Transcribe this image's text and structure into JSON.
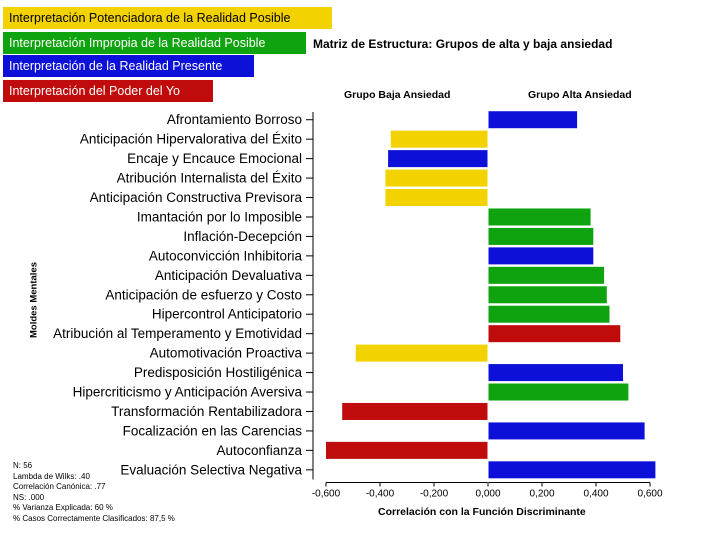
{
  "legend": [
    {
      "label": "Interpretación Potenciadora de la Realidad Posible",
      "color": "#f2d200"
    },
    {
      "label": "Interpretación Impropia de la Realidad Posible",
      "color": "#0fa30f"
    },
    {
      "label": "Interpretación de la Realidad Presente",
      "color": "#0d10d8"
    },
    {
      "label": "Interpretación del Poder del Yo",
      "color": "#bf0b0b"
    }
  ],
  "stats": {
    "n": "N: 56",
    "wilks": "Lambda de Wilks: .40",
    "canonical": "Correlación Canónica: .77",
    "ns": "NS: .000",
    "variance": "% Varianza Explicada: 60 %",
    "classified": "% Casos Correctamente Clasificados: 87,5 %"
  },
  "chart_data": {
    "type": "bar",
    "orientation": "horizontal",
    "title": "Matriz de Estructura: Grupos de alta y baja ansiedad",
    "group_low_label": "Grupo Baja Ansiedad",
    "group_high_label": "Grupo Alta Ansiedad",
    "xlabel": "Correlación con la Función Discriminante",
    "ylabel": "Moldes Mentales",
    "xlim": [
      -0.6,
      0.6
    ],
    "xticks": [
      "-0,600",
      "-0,400",
      "-0,200",
      "0,000",
      "0,200",
      "0,400",
      "0,600"
    ],
    "color_map": {
      "yellow": "#f2d200",
      "green": "#0fa30f",
      "blue": "#0d10d8",
      "red": "#bf0b0b"
    },
    "categories": [
      "Afrontamiento Borroso",
      "Anticipación Hipervalorativa del Éxito",
      "Encaje y Encauce Emocional",
      "Atribución Internalista del Éxito",
      "Anticipación Constructiva Previsora",
      "Imantación por lo Imposible",
      "Inflación-Decepción",
      "Autoconvicción Inhibitoria",
      "Anticipación Devaluativa",
      "Anticipación de esfuerzo y Costo",
      "Hipercontrol Anticipatorio",
      "Atribución al Temperamento y Emotividad",
      "Automotivación Proactiva",
      "Predisposición Hostiligénica",
      "Hipercriticismo y Anticipación Aversiva",
      "Transformación Rentabilizadora",
      "Focalización en las Carencias",
      "Autoconfianza",
      "Evaluación Selectiva Negativa"
    ],
    "values": [
      0.33,
      -0.36,
      -0.37,
      -0.38,
      -0.38,
      0.38,
      0.39,
      0.39,
      0.43,
      0.44,
      0.45,
      0.49,
      -0.49,
      0.5,
      0.52,
      -0.54,
      0.58,
      -0.6,
      0.62
    ],
    "colors": [
      "blue",
      "yellow",
      "blue",
      "yellow",
      "yellow",
      "green",
      "green",
      "blue",
      "green",
      "green",
      "green",
      "red",
      "yellow",
      "blue",
      "green",
      "red",
      "blue",
      "red",
      "blue"
    ]
  }
}
